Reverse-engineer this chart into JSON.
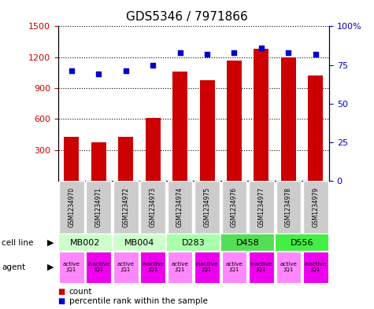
{
  "title": "GDS5346 / 7971866",
  "samples": [
    "GSM1234970",
    "GSM1234971",
    "GSM1234972",
    "GSM1234973",
    "GSM1234974",
    "GSM1234975",
    "GSM1234976",
    "GSM1234977",
    "GSM1234978",
    "GSM1234979"
  ],
  "bar_values": [
    430,
    375,
    430,
    610,
    1060,
    975,
    1165,
    1280,
    1200,
    1020
  ],
  "scatter_values": [
    71,
    69,
    71,
    75,
    83,
    82,
    83,
    86,
    83,
    82
  ],
  "cell_lines": [
    {
      "label": "MB002",
      "span": [
        0,
        2
      ],
      "color": "#ccffcc"
    },
    {
      "label": "MB004",
      "span": [
        2,
        4
      ],
      "color": "#ccffcc"
    },
    {
      "label": "D283",
      "span": [
        4,
        6
      ],
      "color": "#aaffaa"
    },
    {
      "label": "D458",
      "span": [
        6,
        8
      ],
      "color": "#55dd55"
    },
    {
      "label": "D556",
      "span": [
        8,
        10
      ],
      "color": "#44ee44"
    }
  ],
  "agents": [
    "active\nJQ1",
    "inactive\nJQ1",
    "active\nJQ1",
    "inactive\nJQ1",
    "active\nJQ1",
    "inactive\nJQ1",
    "active\nJQ1",
    "inactive\nJQ1",
    "active\nJQ1",
    "inactive\nJQ1"
  ],
  "agent_active_color": "#ff88ff",
  "agent_inactive_color": "#ee00ee",
  "bar_color": "#cc0000",
  "scatter_color": "#0000cc",
  "ylim_left": [
    0,
    1500
  ],
  "ylim_right": [
    0,
    100
  ],
  "yticks_left": [
    300,
    600,
    900,
    1200,
    1500
  ],
  "yticks_right": [
    0,
    25,
    50,
    75,
    100
  ],
  "ytick_labels_right": [
    "0",
    "25",
    "50",
    "75",
    "100%"
  ],
  "sample_box_color": "#cccccc",
  "background_color": "#ffffff"
}
